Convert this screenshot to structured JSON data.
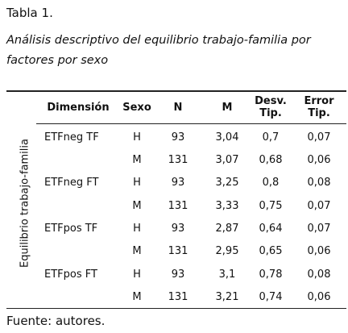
{
  "header": {
    "title": "Tabla 1.",
    "subtitle": "Análisis descriptivo del equilibrio trabajo-familia por factores por sexo"
  },
  "table": {
    "group_label": "Equilibrio trabajo-familia",
    "columns": [
      "Dimensión",
      "Sexo",
      "N",
      "M",
      "Desv. Tip.",
      "Error Tip."
    ],
    "rows": [
      [
        "ETFneg TF",
        "H",
        "93",
        "3,04",
        "0,7",
        "0,07"
      ],
      [
        "M",
        "131",
        "3,07",
        "0,68",
        "0,06"
      ],
      [
        "ETFneg FT",
        "H",
        "93",
        "3,25",
        "0,8",
        "0,08"
      ],
      [
        "M",
        "131",
        "3,33",
        "0,75",
        "0,07"
      ],
      [
        "ETFpos TF",
        "H",
        "93",
        "2,87",
        "0,64",
        "0,07"
      ],
      [
        "M",
        "131",
        "2,95",
        "0,65",
        "0,06"
      ],
      [
        "ETFpos FT",
        "H",
        "93",
        "3,1",
        "0,78",
        "0,08"
      ],
      [
        "M",
        "131",
        "3,21",
        "0,74",
        "0,06"
      ]
    ]
  },
  "footer": {
    "source": "Fuente: autores."
  }
}
